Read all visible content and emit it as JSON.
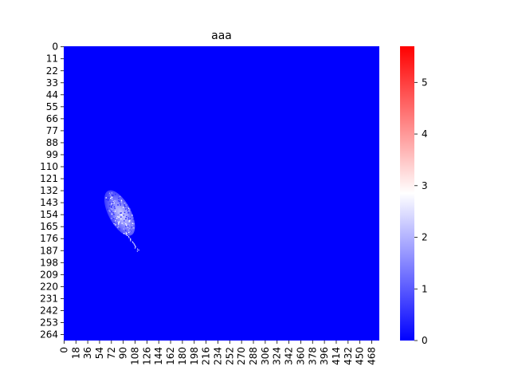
{
  "chart_data": {
    "type": "heatmap",
    "title": "aaa",
    "xlabel": "",
    "ylabel": "",
    "x_ticks": [
      "0",
      "18",
      "36",
      "54",
      "72",
      "90",
      "108",
      "126",
      "144",
      "162",
      "180",
      "198",
      "216",
      "234",
      "252",
      "270",
      "288",
      "306",
      "324",
      "342",
      "360",
      "378",
      "396",
      "414",
      "432",
      "450",
      "468"
    ],
    "y_ticks": [
      "0",
      "11",
      "22",
      "33",
      "44",
      "55",
      "66",
      "77",
      "88",
      "99",
      "110",
      "121",
      "132",
      "143",
      "154",
      "165",
      "176",
      "187",
      "198",
      "209",
      "220",
      "231",
      "242",
      "253",
      "264"
    ],
    "x_extent": [
      0,
      480
    ],
    "y_extent": [
      0,
      270
    ],
    "colorbar": {
      "min": 0,
      "max": 5.7,
      "ticks": [
        "0",
        "1",
        "2",
        "3",
        "4",
        "5"
      ],
      "colors": [
        "#0000ff",
        "#ffffff",
        "#ff0000"
      ]
    },
    "background_value": 0,
    "blob": {
      "description_value_range": [
        0,
        3
      ],
      "center_x": 85,
      "center_y": 153,
      "semi_axis_x": 17,
      "semi_axis_y": 23,
      "rotation_deg": -28
    }
  }
}
